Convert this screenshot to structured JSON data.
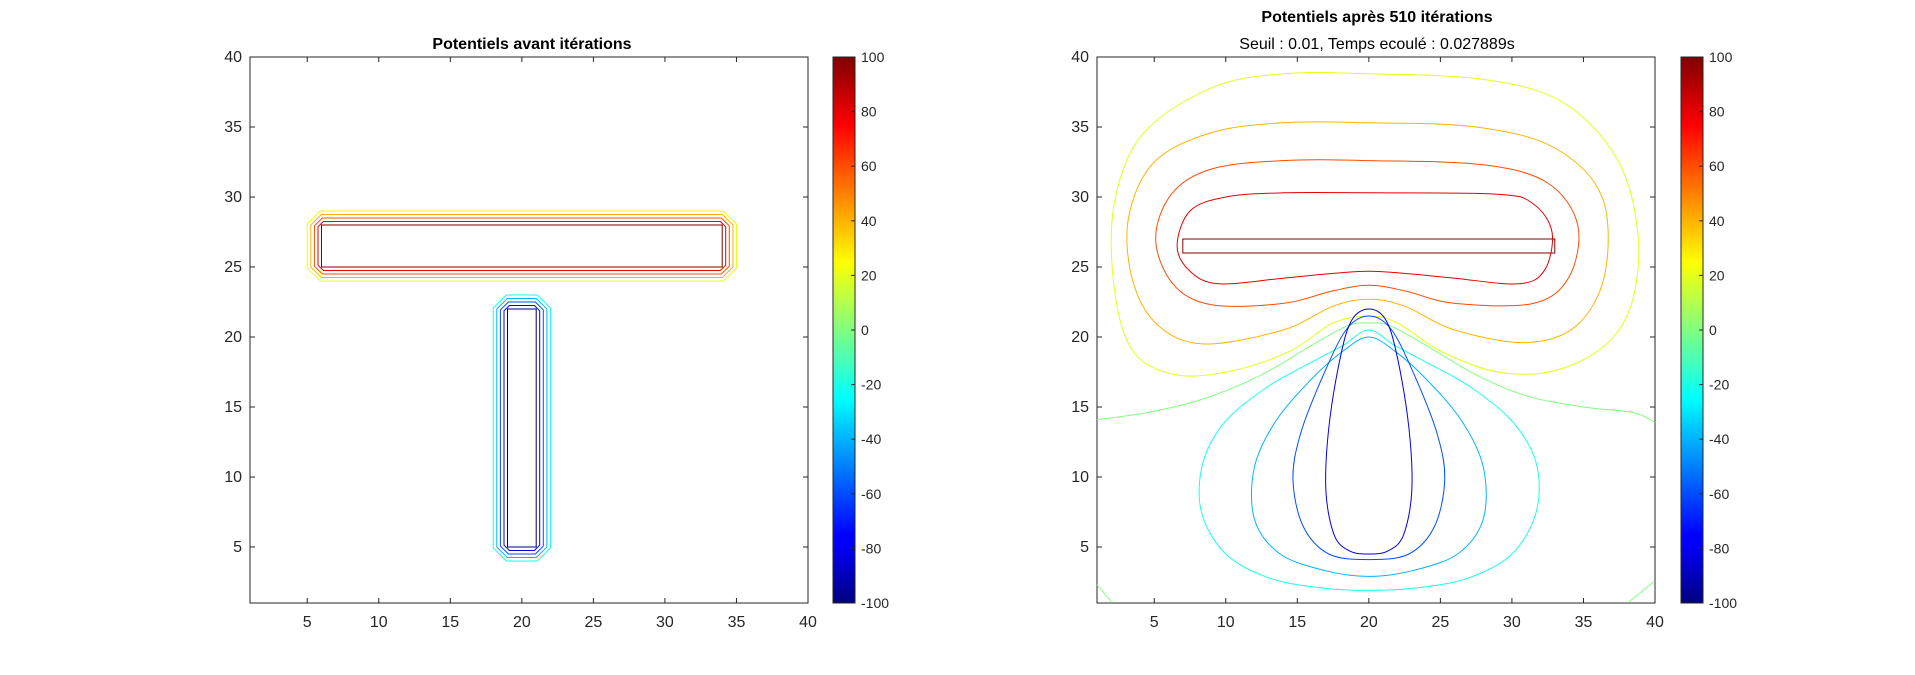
{
  "chart_data": [
    {
      "type": "contour",
      "title": "Potentiels avant itérations",
      "subtitle": "",
      "xlim": [
        1,
        40
      ],
      "ylim": [
        1,
        40
      ],
      "xticks": [
        "5",
        "10",
        "15",
        "20",
        "25",
        "30",
        "35",
        "40"
      ],
      "yticks": [
        "5",
        "10",
        "15",
        "20",
        "25",
        "30",
        "35",
        "40"
      ],
      "colorbar": {
        "min": -100,
        "max": 100,
        "ticks": [
          "100",
          "80",
          "60",
          "40",
          "20",
          "0",
          "-20",
          "-40",
          "-60",
          "-80",
          "-100"
        ],
        "colormap": "jet"
      },
      "electrodes": [
        {
          "potential": 100,
          "x": [
            6,
            34
          ],
          "y": [
            25,
            28
          ]
        },
        {
          "potential": -100,
          "x": [
            19,
            21
          ],
          "y": [
            5,
            22
          ]
        }
      ],
      "contour_levels": [
        100,
        80,
        60,
        40,
        20,
        -100,
        -80,
        -60,
        -40,
        -20,
        0
      ],
      "grid": false
    },
    {
      "type": "contour",
      "title": "Potentiels après 510 itérations",
      "subtitle": "Seuil : 0.01, Temps ecoulé : 0.027889s",
      "xlim": [
        1,
        40
      ],
      "ylim": [
        1,
        40
      ],
      "xticks": [
        "5",
        "10",
        "15",
        "20",
        "25",
        "30",
        "35",
        "40"
      ],
      "yticks": [
        "5",
        "10",
        "15",
        "20",
        "25",
        "30",
        "35",
        "40"
      ],
      "colorbar": {
        "min": -100,
        "max": 100,
        "ticks": [
          "100",
          "80",
          "60",
          "40",
          "20",
          "0",
          "-20",
          "-40",
          "-60",
          "-80",
          "-100"
        ],
        "colormap": "jet"
      },
      "electrodes": [
        {
          "potential": 100,
          "x": [
            7,
            33
          ],
          "y": [
            26,
            27
          ]
        }
      ],
      "contour_levels": [
        80,
        60,
        40,
        20,
        0,
        -20,
        -40,
        -60,
        -80
      ],
      "grid": false
    }
  ]
}
